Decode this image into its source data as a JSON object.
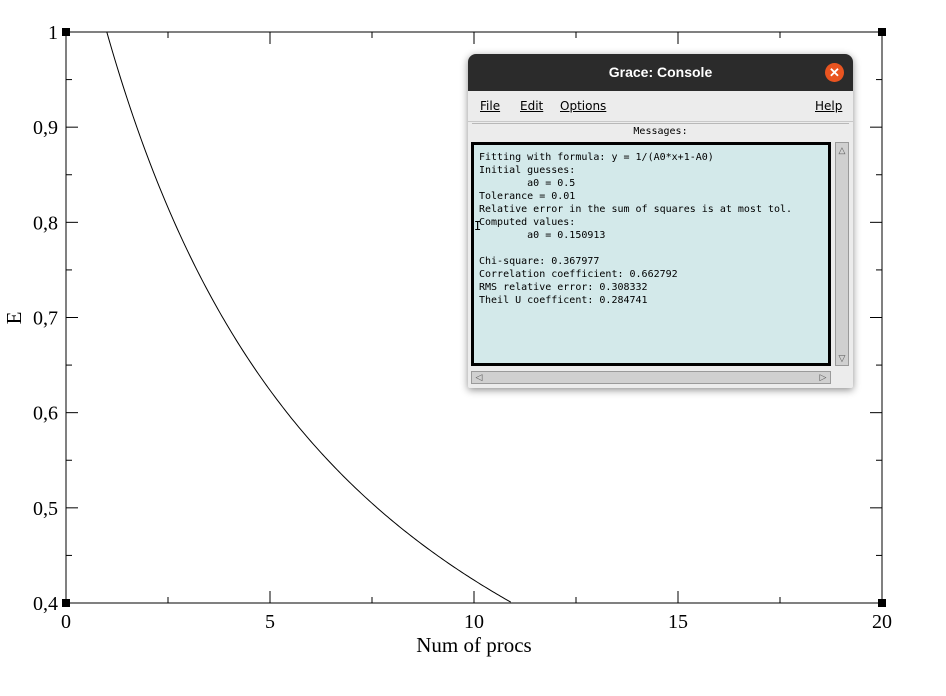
{
  "chart_data": {
    "type": "line",
    "title": "",
    "xlabel": "Num of procs",
    "ylabel": "E",
    "xlim": [
      0,
      20
    ],
    "ylim": [
      0.4,
      1
    ],
    "x_ticks": [
      "0",
      "5",
      "10",
      "15",
      "20"
    ],
    "y_ticks": [
      "0,4",
      "0,5",
      "0,6",
      "0,7",
      "0,8",
      "0,9",
      "1"
    ],
    "grid": false,
    "series": [
      {
        "formula": "y = 1/(A0*x+1-A0)",
        "A0": 0.150913,
        "x": [
          1,
          2,
          3,
          4,
          5,
          6,
          7,
          8,
          9,
          10,
          10.9
        ],
        "y": [
          1.0,
          0.869,
          0.768,
          0.688,
          0.624,
          0.57,
          0.524,
          0.486,
          0.452,
          0.424,
          0.4
        ]
      }
    ]
  },
  "console": {
    "title": "Grace: Console",
    "menu": {
      "file": "File",
      "edit": "Edit",
      "options": "Options",
      "help": "Help"
    },
    "messages_label": "Messages:",
    "lines": [
      "Fitting with formula: y = 1/(A0*x+1-A0)",
      "Initial guesses:",
      "        a0 = 0.5",
      "Tolerance = 0.01",
      "Relative error in the sum of squares is at most tol.",
      "Computed values:",
      "        a0 = 0.150913",
      "",
      "Chi-square: 0.367977",
      "Correlation coefficient: 0.662792",
      "RMS relative error: 0.308332",
      "Theil U coefficent: 0.284741"
    ]
  },
  "icons": {
    "close": "close-icon",
    "cursor": "text-cursor-icon"
  }
}
